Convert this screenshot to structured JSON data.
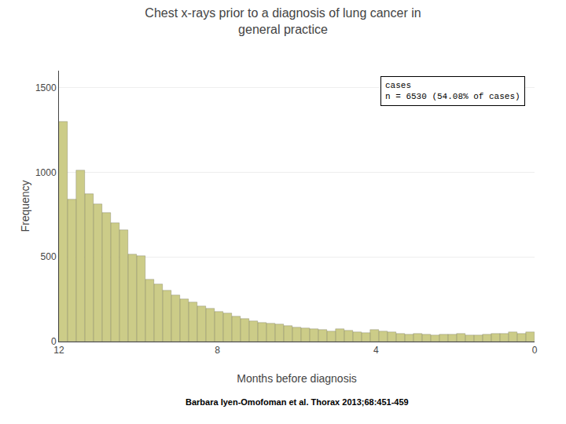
{
  "chart_data": {
    "type": "histogram",
    "title": "Chest x-rays prior to a diagnosis of lung cancer in\ngeneral practice",
    "xlabel": "Months before diagnosis",
    "ylabel": "Frequency",
    "annotations": [
      "cases\nn = 6530 (54.08% of cases)",
      "Barbara Iyen-Omofoman et al. Thorax 2013;68:451-459"
    ],
    "bins": [
      0,
      0.218182,
      0.436364,
      0.654545,
      0.872727,
      1.090909,
      1.309091,
      1.527273,
      1.745455,
      1.963636,
      2.181818,
      2.4,
      2.618182,
      2.836364,
      3.054545,
      3.272727,
      3.490909,
      3.709091,
      3.927273,
      4.145455,
      4.363636,
      4.581818,
      4.8,
      5.018182,
      5.236364,
      5.454545,
      5.672727,
      5.890909,
      6.109091,
      6.327273,
      6.545455,
      6.763636,
      6.981818,
      7.2,
      7.418182,
      7.636364,
      7.854545,
      8.072727,
      8.290909,
      8.509091,
      8.727273,
      8.945455,
      9.163636,
      9.381818,
      9.6,
      9.818182,
      10.036364,
      10.254545,
      10.472727,
      10.690909,
      10.909091,
      11.127273,
      11.345455,
      11.563636,
      11.781818,
      12
    ],
    "values": [
      55,
      45,
      55,
      45,
      45,
      40,
      38,
      35,
      45,
      40,
      40,
      38,
      42,
      48,
      42,
      48,
      55,
      62,
      70,
      52,
      55,
      65,
      72,
      60,
      70,
      72,
      80,
      85,
      92,
      100,
      105,
      110,
      120,
      135,
      150,
      165,
      175,
      195,
      210,
      230,
      250,
      275,
      300,
      340,
      365,
      505,
      515,
      660,
      700,
      760,
      810,
      870,
      1010,
      840,
      1300
    ],
    "color": "#cccc88",
    "xlim": [
      12,
      0
    ],
    "xticks": [
      0,
      4,
      8,
      12
    ],
    "ylim": [
      0,
      1600
    ],
    "yticks": [
      0,
      500,
      1000,
      1500
    ],
    "grid": "y"
  }
}
